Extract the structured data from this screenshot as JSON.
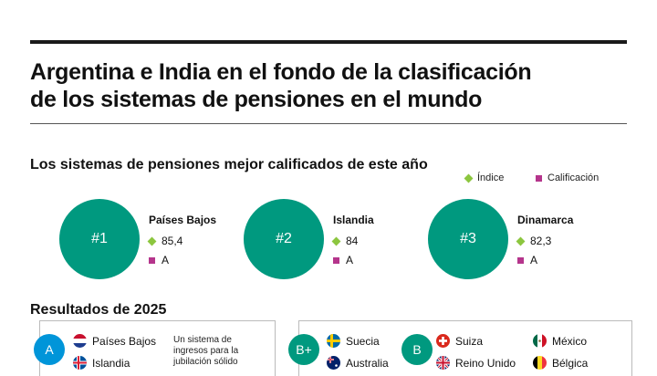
{
  "title_line1": "Argentina e India en el fondo de la clasificación",
  "title_line2": "de los sistemas de pensiones en el mundo",
  "subtitle": "Los sistemas de pensiones mejor calificados de este año",
  "legend": {
    "index_label": "Índice",
    "grade_label": "Calificación",
    "index_color": "#8cc63f",
    "grade_color": "#b5358c"
  },
  "chart_data": {
    "type": "table",
    "title": "Los sistemas de pensiones mejor calificados de este año",
    "rows": [
      {
        "rank": "#1",
        "country": "Países Bajos",
        "index": "85,4",
        "grade": "A"
      },
      {
        "rank": "#2",
        "country": "Islandia",
        "index": "84",
        "grade": "A"
      },
      {
        "rank": "#3",
        "country": "Dinamarca",
        "index": "82,3",
        "grade": "A"
      }
    ]
  },
  "results": {
    "title": "Resultados de 2025",
    "panel_a": {
      "grade": "A",
      "grade_color": "#0095d9",
      "countries": [
        "Países Bajos",
        "Islandia"
      ],
      "description": "Un sistema de ingresos para la jubilación sólido"
    },
    "panel_b": {
      "grade_bplus": "B+",
      "grade_b": "B",
      "grade_color": "#00997f",
      "bplus_countries": [
        "Suecia",
        "Australia"
      ],
      "b_countries_col1": [
        "Suiza",
        "Reino Unido"
      ],
      "b_countries_col2": [
        "México",
        "Bélgica"
      ]
    }
  },
  "accent_color": "#00997f"
}
